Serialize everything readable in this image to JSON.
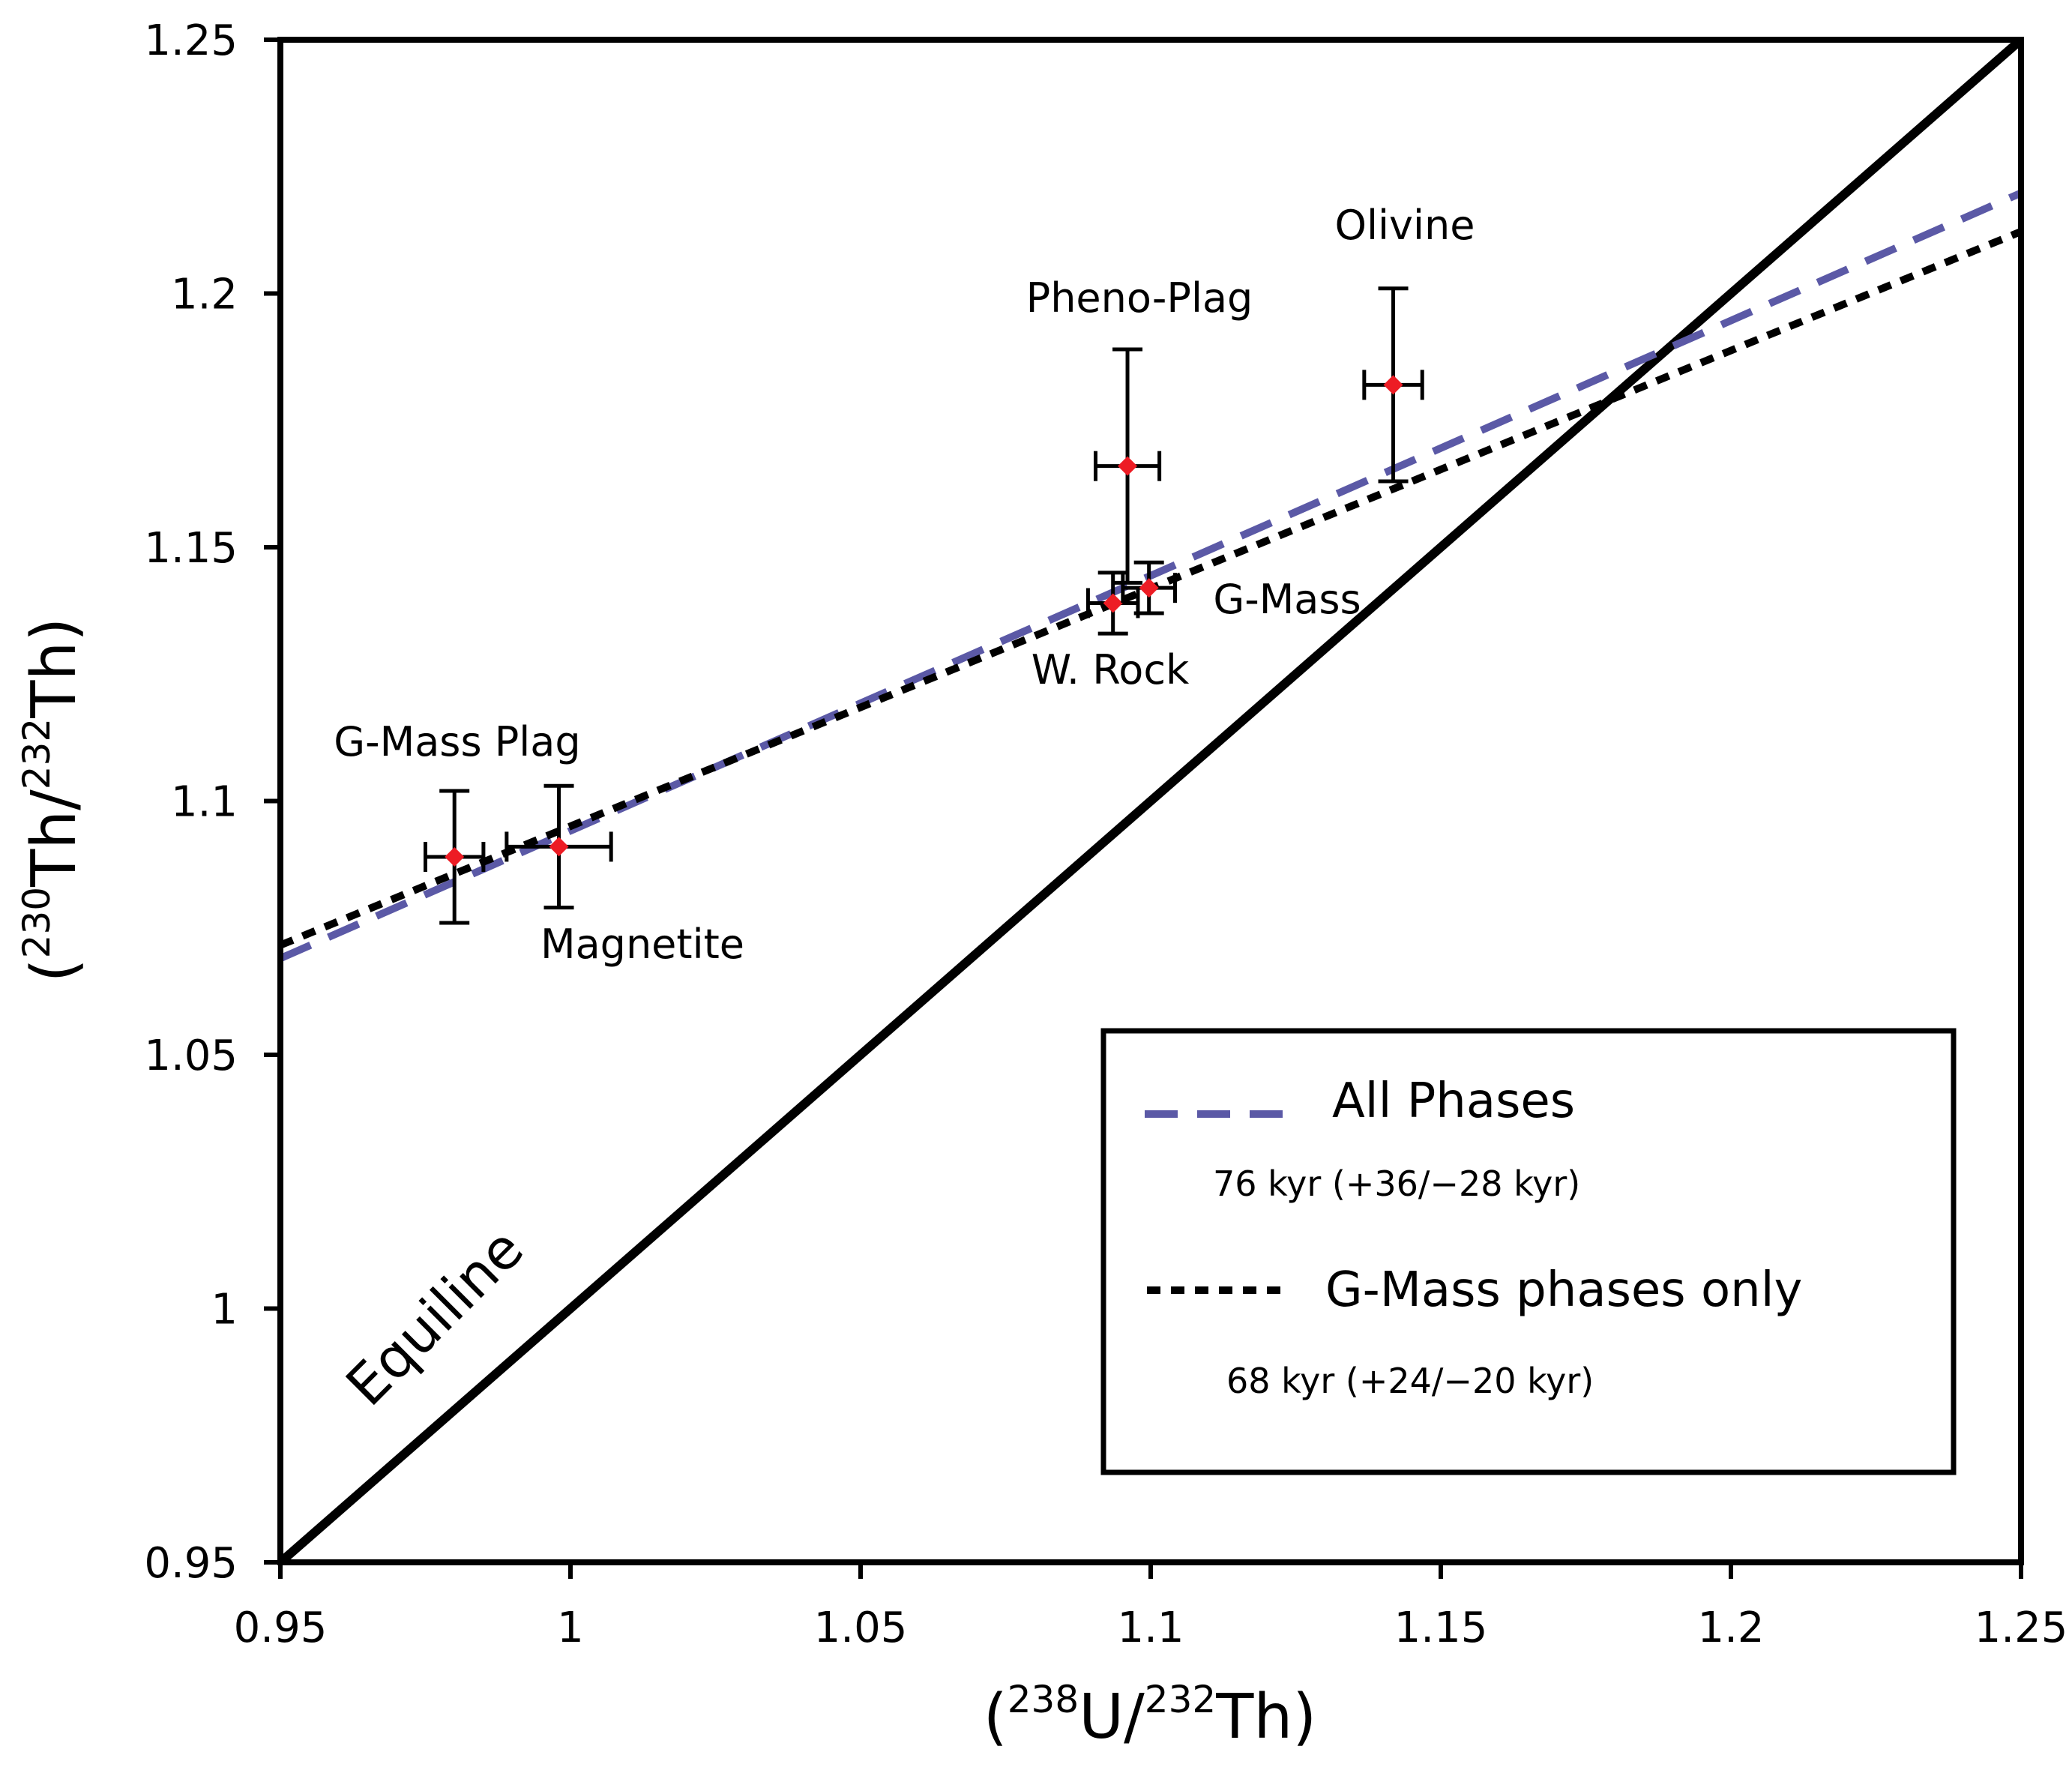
{
  "chart_data": {
    "type": "scatter",
    "xlabel": {
      "pre": "(",
      "sup1": "238",
      "mid": "U/",
      "sup2": "232",
      "post": "Th)"
    },
    "ylabel": {
      "pre": "(",
      "sup1": "230",
      "mid": "Th/",
      "sup2": "232",
      "post": "Th)"
    },
    "xlim": [
      0.95,
      1.25
    ],
    "ylim": [
      0.95,
      1.25
    ],
    "x_ticks": [
      "0.95",
      "1",
      "1.05",
      "1.1",
      "1.15",
      "1.2",
      "1.25"
    ],
    "y_ticks": [
      "0.95",
      "1",
      "1.05",
      "1.1",
      "1.15",
      "1.2",
      "1.25"
    ],
    "grid": false,
    "points": [
      {
        "label": "G-Mass Plag",
        "x": 0.98,
        "y": 1.089,
        "xerr": 0.005,
        "yerr": 0.013
      },
      {
        "label": "Magnetite",
        "x": 0.998,
        "y": 1.091,
        "xerr": 0.009,
        "yerr": 0.012
      },
      {
        "label": "W. Rock",
        "x": 1.0935,
        "y": 1.139,
        "xerr": 0.0043,
        "yerr": 0.006
      },
      {
        "label": "G-Mass",
        "x": 1.0997,
        "y": 1.142,
        "xerr": 0.0045,
        "yerr": 0.005
      },
      {
        "label": "Pheno-Plag",
        "x": 1.096,
        "y": 1.166,
        "xerr": 0.0055,
        "yerr": 0.023
      },
      {
        "label": "Olivine",
        "x": 1.1418,
        "y": 1.182,
        "xerr": 0.005,
        "yerr": 0.019
      }
    ],
    "lines": [
      {
        "name": "Equiline",
        "style": "solid",
        "color": "#000000",
        "x": [
          0.95,
          1.25
        ],
        "y": [
          0.95,
          1.25
        ]
      },
      {
        "name": "All Phases",
        "style": "dashed",
        "color": "#5b59a6",
        "x": [
          0.95,
          1.25
        ],
        "y": [
          1.069,
          1.2198
        ],
        "age": "76 kyr (+36/−28 kyr)"
      },
      {
        "name": "G-Mass phases only",
        "style": "dotted",
        "color": "#000000",
        "x": [
          0.95,
          1.25
        ],
        "y": [
          1.0716,
          1.2122
        ],
        "age": "68 kyr (+24/−20 kyr)"
      }
    ],
    "marker_color": "#ed1c24",
    "legend_position": "bottom-right"
  }
}
